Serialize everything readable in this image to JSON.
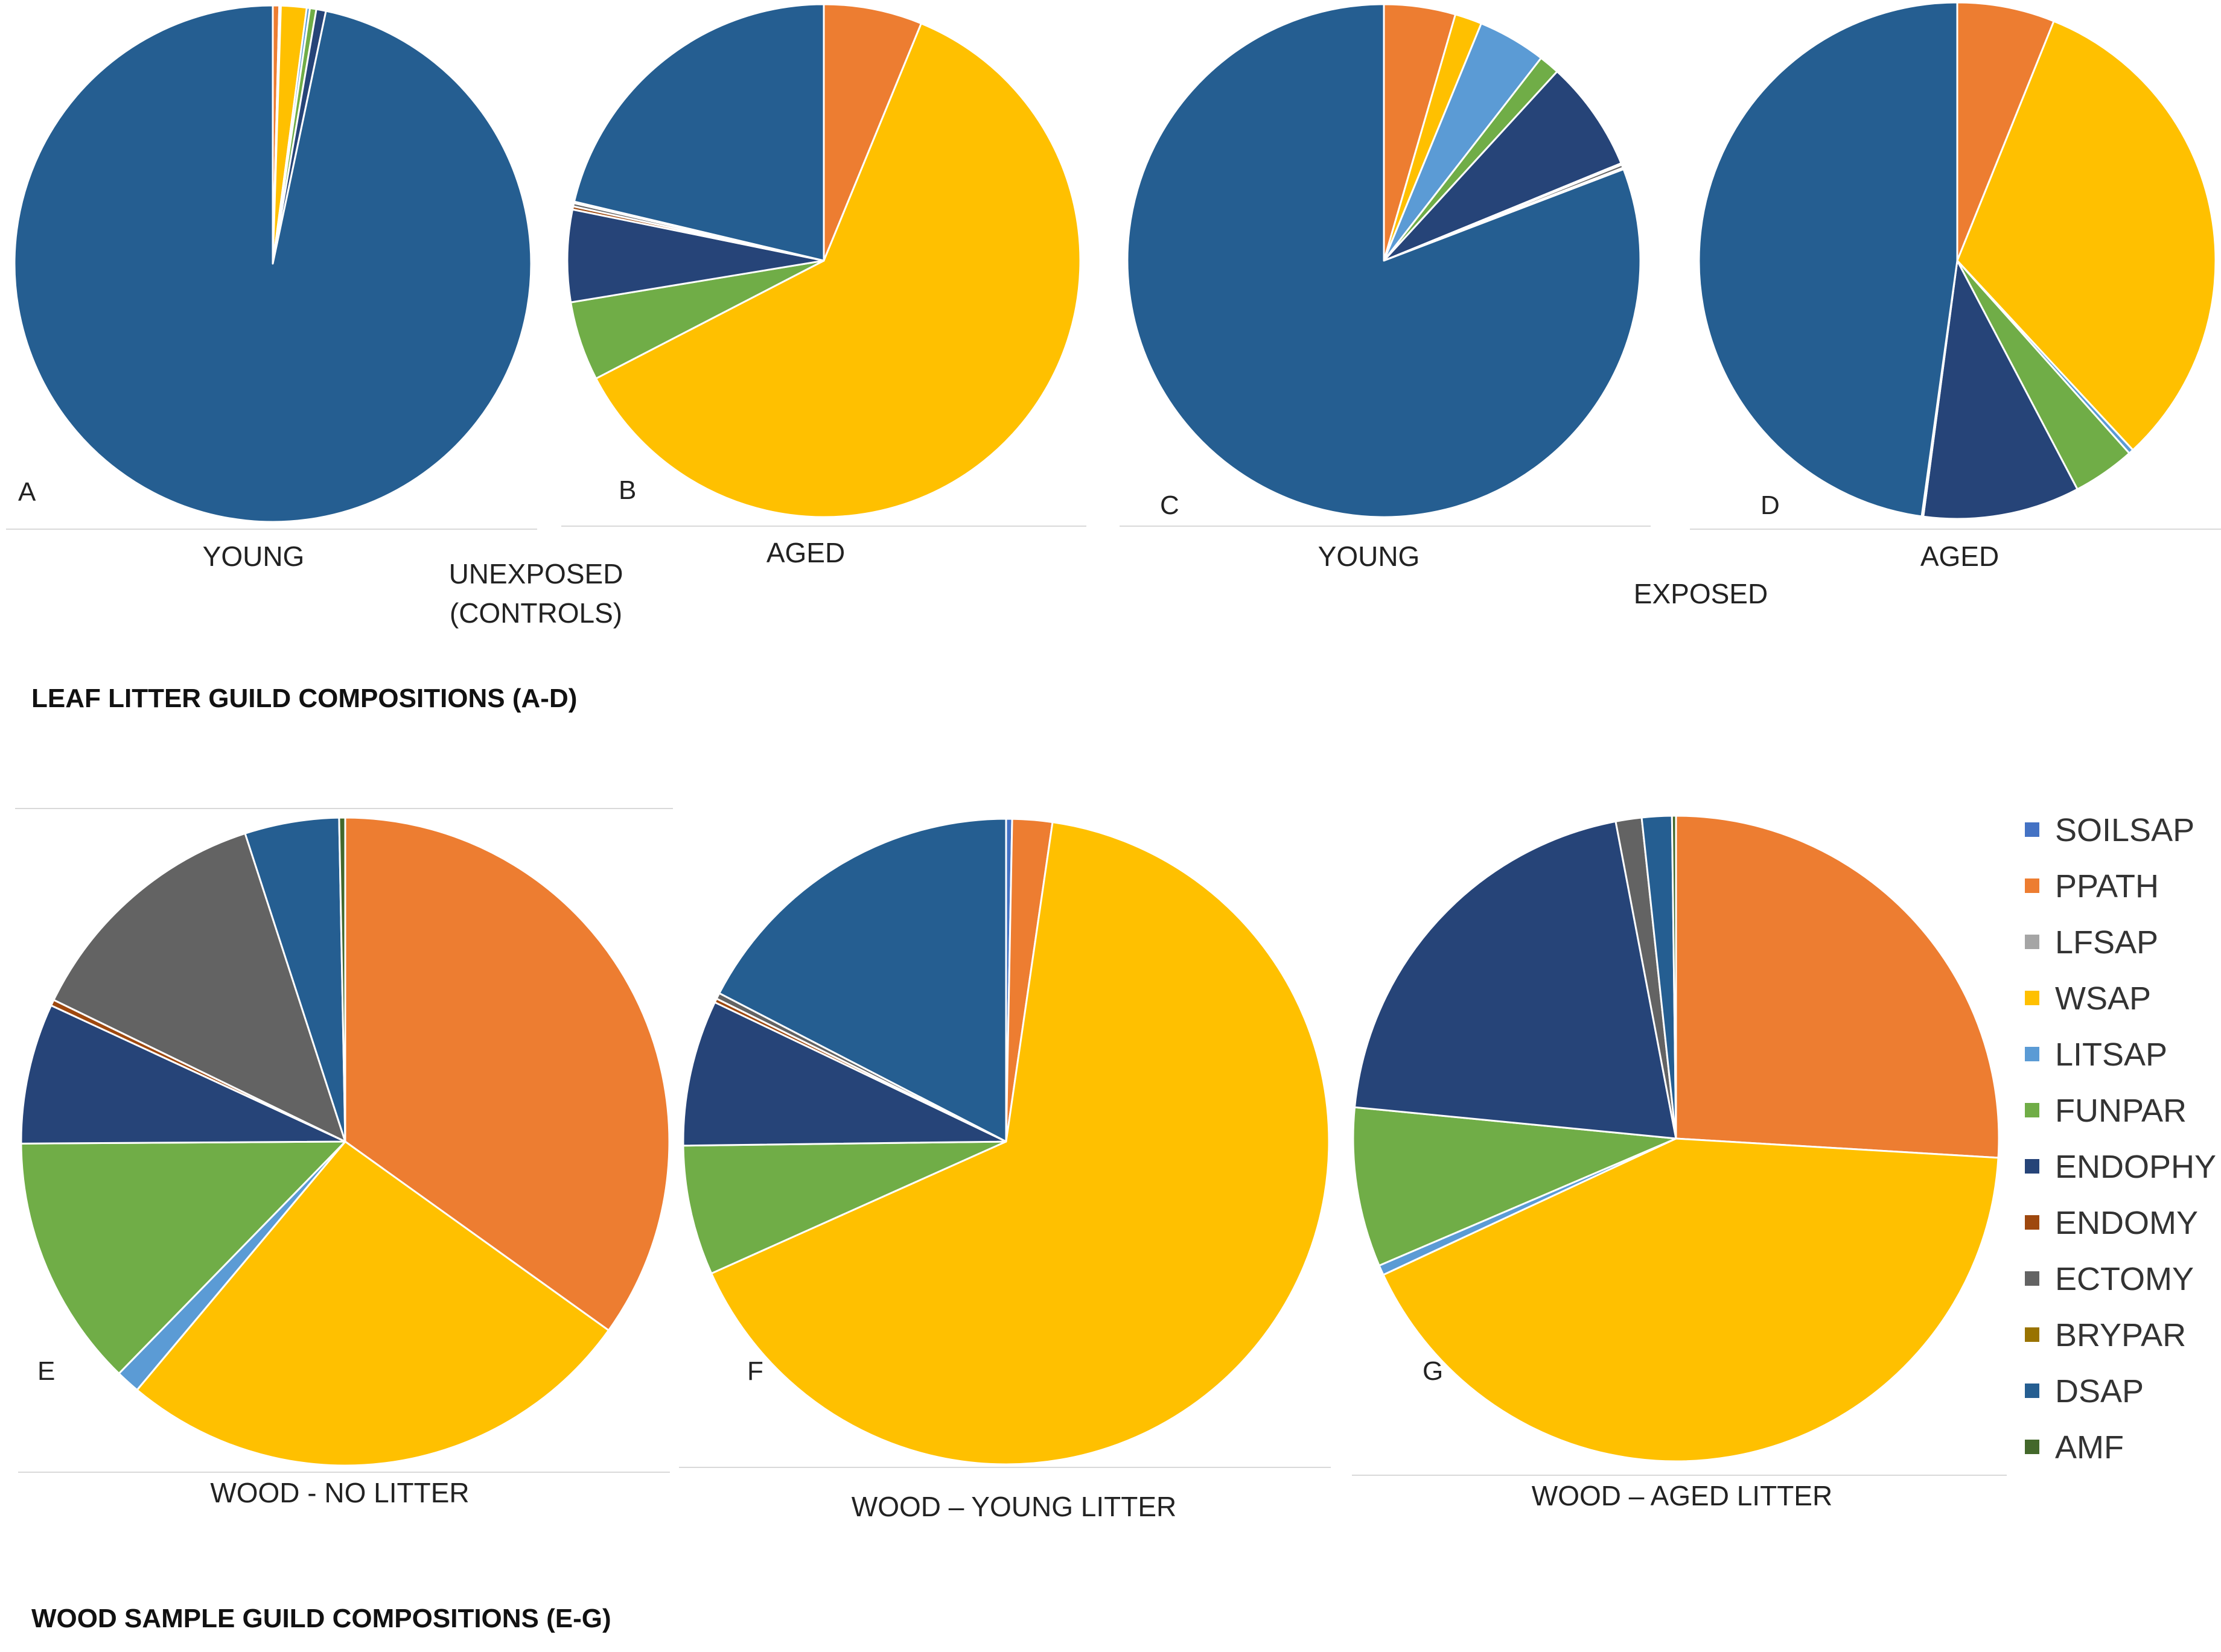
{
  "guilds": [
    {
      "key": "SOILSAP",
      "label": "SOILSAP",
      "color": "#4472C4"
    },
    {
      "key": "PPATH",
      "label": "PPATH",
      "color": "#ED7D31"
    },
    {
      "key": "LFSAP",
      "label": "LFSAP",
      "color": "#A5A5A5"
    },
    {
      "key": "WSAP",
      "label": "WSAP",
      "color": "#FFC000"
    },
    {
      "key": "LITSAP",
      "label": "LITSAP",
      "color": "#5B9BD5"
    },
    {
      "key": "FUNPAR",
      "label": "FUNPAR",
      "color": "#70AD47"
    },
    {
      "key": "ENDOPHY",
      "label": "ENDOPHY",
      "color": "#264478"
    },
    {
      "key": "ENDOMY",
      "label": "ENDOMY",
      "color": "#9E480E"
    },
    {
      "key": "ECTOMY",
      "label": "ECTOMY",
      "color": "#636363"
    },
    {
      "key": "BRYPAR",
      "label": "BRYPAR",
      "color": "#997300"
    },
    {
      "key": "DSAP",
      "label": "DSAP",
      "color": "#255E91"
    },
    {
      "key": "AMF",
      "label": "AMF",
      "color": "#43682B"
    }
  ],
  "chart_data": [
    {
      "type": "pie",
      "panel": "A",
      "caption": "YOUNG",
      "slices": [
        {
          "guild": "SOILSAP",
          "value": 0
        },
        {
          "guild": "PPATH",
          "value": 0.4
        },
        {
          "guild": "LFSAP",
          "value": 0.1
        },
        {
          "guild": "WSAP",
          "value": 1.6
        },
        {
          "guild": "LITSAP",
          "value": 0.2
        },
        {
          "guild": "FUNPAR",
          "value": 0.4
        },
        {
          "guild": "ENDOPHY",
          "value": 0.6
        },
        {
          "guild": "ENDOMY",
          "value": 0
        },
        {
          "guild": "ECTOMY",
          "value": 0
        },
        {
          "guild": "BRYPAR",
          "value": 0
        },
        {
          "guild": "DSAP",
          "value": 96.7
        },
        {
          "guild": "AMF",
          "value": 0
        }
      ]
    },
    {
      "type": "pie",
      "panel": "B",
      "caption": "AGED",
      "slices": [
        {
          "guild": "SOILSAP",
          "value": 0
        },
        {
          "guild": "PPATH",
          "value": 6.2
        },
        {
          "guild": "LFSAP",
          "value": 0
        },
        {
          "guild": "WSAP",
          "value": 61.2
        },
        {
          "guild": "LITSAP",
          "value": 0
        },
        {
          "guild": "FUNPAR",
          "value": 5.0
        },
        {
          "guild": "ENDOPHY",
          "value": 5.8
        },
        {
          "guild": "ENDOMY",
          "value": 0.2
        },
        {
          "guild": "ECTOMY",
          "value": 0.2
        },
        {
          "guild": "BRYPAR",
          "value": 0.1
        },
        {
          "guild": "DSAP",
          "value": 21.3
        },
        {
          "guild": "AMF",
          "value": 0
        }
      ]
    },
    {
      "type": "pie",
      "panel": "C",
      "caption": "YOUNG",
      "slices": [
        {
          "guild": "SOILSAP",
          "value": 0
        },
        {
          "guild": "PPATH",
          "value": 4.5
        },
        {
          "guild": "LFSAP",
          "value": 0
        },
        {
          "guild": "WSAP",
          "value": 1.7
        },
        {
          "guild": "LITSAP",
          "value": 4.3
        },
        {
          "guild": "FUNPAR",
          "value": 1.3
        },
        {
          "guild": "ENDOPHY",
          "value": 7.0
        },
        {
          "guild": "ENDOMY",
          "value": 0.1
        },
        {
          "guild": "ECTOMY",
          "value": 0.2
        },
        {
          "guild": "BRYPAR",
          "value": 0.1
        },
        {
          "guild": "DSAP",
          "value": 80.8
        },
        {
          "guild": "AMF",
          "value": 0
        }
      ]
    },
    {
      "type": "pie",
      "panel": "D",
      "caption": "AGED",
      "slices": [
        {
          "guild": "SOILSAP",
          "value": 0
        },
        {
          "guild": "PPATH",
          "value": 6.1
        },
        {
          "guild": "LFSAP",
          "value": 0
        },
        {
          "guild": "WSAP",
          "value": 32.0
        },
        {
          "guild": "LITSAP",
          "value": 0.3
        },
        {
          "guild": "FUNPAR",
          "value": 3.9
        },
        {
          "guild": "ENDOPHY",
          "value": 9.8
        },
        {
          "guild": "ENDOMY",
          "value": 0
        },
        {
          "guild": "ECTOMY",
          "value": 0
        },
        {
          "guild": "BRYPAR",
          "value": 0.1
        },
        {
          "guild": "DSAP",
          "value": 47.8
        },
        {
          "guild": "AMF",
          "value": 0
        }
      ]
    },
    {
      "type": "pie",
      "panel": "E",
      "caption": "WOOD - NO LITTER",
      "slices": [
        {
          "guild": "SOILSAP",
          "value": 0
        },
        {
          "guild": "PPATH",
          "value": 34.9
        },
        {
          "guild": "LFSAP",
          "value": 0
        },
        {
          "guild": "WSAP",
          "value": 26.2
        },
        {
          "guild": "LITSAP",
          "value": 1.2
        },
        {
          "guild": "FUNPAR",
          "value": 12.6
        },
        {
          "guild": "ENDOPHY",
          "value": 7.0
        },
        {
          "guild": "ENDOMY",
          "value": 0.3
        },
        {
          "guild": "ECTOMY",
          "value": 12.8
        },
        {
          "guild": "BRYPAR",
          "value": 0
        },
        {
          "guild": "DSAP",
          "value": 4.7
        },
        {
          "guild": "AMF",
          "value": 0.3
        }
      ]
    },
    {
      "type": "pie",
      "panel": "F",
      "caption": "WOOD – YOUNG LITTER",
      "slices": [
        {
          "guild": "SOILSAP",
          "value": 0.3
        },
        {
          "guild": "PPATH",
          "value": 2.0
        },
        {
          "guild": "LFSAP",
          "value": 0
        },
        {
          "guild": "WSAP",
          "value": 66.0
        },
        {
          "guild": "LITSAP",
          "value": 0
        },
        {
          "guild": "FUNPAR",
          "value": 6.5
        },
        {
          "guild": "ENDOPHY",
          "value": 7.3
        },
        {
          "guild": "ENDOMY",
          "value": 0.2
        },
        {
          "guild": "ECTOMY",
          "value": 0.3
        },
        {
          "guild": "BRYPAR",
          "value": 0
        },
        {
          "guild": "DSAP",
          "value": 17.4
        },
        {
          "guild": "AMF",
          "value": 0
        }
      ]
    },
    {
      "type": "pie",
      "panel": "G",
      "caption": "WOOD – AGED LITTER",
      "slices": [
        {
          "guild": "SOILSAP",
          "value": 0
        },
        {
          "guild": "PPATH",
          "value": 26.0
        },
        {
          "guild": "LFSAP",
          "value": 0
        },
        {
          "guild": "WSAP",
          "value": 42.2
        },
        {
          "guild": "LITSAP",
          "value": 0.5
        },
        {
          "guild": "FUNPAR",
          "value": 8.0
        },
        {
          "guild": "ENDOPHY",
          "value": 20.5
        },
        {
          "guild": "ENDOMY",
          "value": 0
        },
        {
          "guild": "ECTOMY",
          "value": 1.3
        },
        {
          "guild": "BRYPAR",
          "value": 0
        },
        {
          "guild": "DSAP",
          "value": 1.5
        },
        {
          "guild": "AMF",
          "value": 0.2
        }
      ]
    }
  ],
  "labels": {
    "unexposed_line1": "UNEXPOSED",
    "unexposed_line2": "(CONTROLS)",
    "exposed": "EXPOSED",
    "leaf_title": "LEAF LITTER GUILD COMPOSITIONS (A-D)",
    "wood_title": "WOOD SAMPLE GUILD COMPOSITIONS (E-G)"
  }
}
